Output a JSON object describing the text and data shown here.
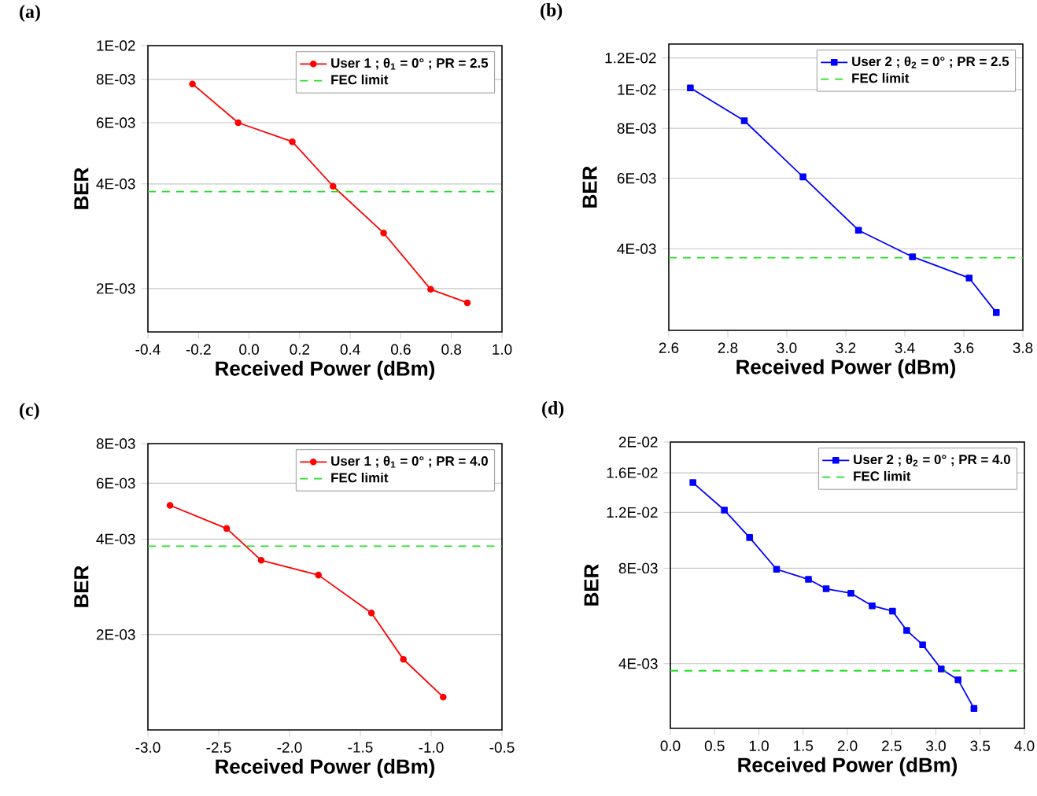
{
  "chart_data": [
    {
      "type": "line",
      "title": "(a)",
      "xlabel": "Received Power (dBm)",
      "ylabel": "BER",
      "log": "y",
      "grid": "y",
      "legend": "top right",
      "marker": "circle",
      "x": [
        -0.224,
        -0.043,
        0.171,
        0.332,
        0.532,
        0.718,
        0.863
      ],
      "series": [
        {
          "name": "User 1 ; θ$_{1}$ = 0° ; PR = 2.5",
          "color": "#ff0000",
          "values": [
            0.00776,
            0.006,
            0.00529,
            0.00394,
            0.00289,
            0.00199,
            0.00182
          ]
        }
      ],
      "ref_lines": [
        {
          "axis": "y",
          "value": 0.0038,
          "label": "FEC limit",
          "color": "#22dd22",
          "line_style": "dashed"
        }
      ],
      "xlim": [
        -0.4,
        1.0
      ],
      "ylim": [
        0.0015,
        0.01
      ],
      "xticks": [
        {
          "value": -0.4,
          "label": "-0.4"
        },
        {
          "value": -0.2,
          "label": "-0.2"
        },
        {
          "value": 0,
          "label": "0.0"
        },
        {
          "value": 0.2,
          "label": "0.2"
        },
        {
          "value": 0.4,
          "label": "0.4"
        },
        {
          "value": 0.6,
          "label": "0.6"
        },
        {
          "value": 0.8,
          "label": "0.8"
        },
        {
          "value": 1.0,
          "label": "1.0"
        }
      ],
      "yticks": [
        {
          "value": 0.002,
          "label": "2E-03"
        },
        {
          "value": 0.004,
          "label": "4E-03"
        },
        {
          "value": 0.006,
          "label": "6E-03"
        },
        {
          "value": 0.008,
          "label": "8E-03"
        },
        {
          "value": 0.01,
          "label": "1E-02"
        }
      ]
    },
    {
      "type": "line",
      "title": "(b)",
      "xlabel": "Received Power (dBm)",
      "ylabel": "BER",
      "log": "y",
      "grid": "y",
      "legend": "top right",
      "marker": "square",
      "x": [
        2.673,
        2.856,
        3.055,
        3.243,
        3.426,
        3.618,
        3.71
      ],
      "series": [
        {
          "name": "User 2 ; θ$_{2}$ = 0° ; PR = 2.5",
          "color": "#0000ff",
          "values": [
            0.0101,
            0.00836,
            0.00605,
            0.00445,
            0.00382,
            0.00338,
            0.00277
          ]
        }
      ],
      "ref_lines": [
        {
          "axis": "y",
          "value": 0.0038,
          "label": "FEC limit",
          "color": "#22dd22",
          "line_style": "dashed"
        }
      ],
      "xlim": [
        2.6,
        3.8
      ],
      "ylim": [
        0.0025,
        0.013
      ],
      "xticks": [
        {
          "value": 2.6,
          "label": "2.6"
        },
        {
          "value": 2.8,
          "label": "2.8"
        },
        {
          "value": 3.0,
          "label": "3.0"
        },
        {
          "value": 3.2,
          "label": "3.2"
        },
        {
          "value": 3.4,
          "label": "3.4"
        },
        {
          "value": 3.6,
          "label": "3.6"
        },
        {
          "value": 3.8,
          "label": "3.8"
        }
      ],
      "yticks": [
        {
          "value": 0.004,
          "label": "4E-03"
        },
        {
          "value": 0.006,
          "label": "6E-03"
        },
        {
          "value": 0.008,
          "label": "8E-03"
        },
        {
          "value": 0.01,
          "label": "1E-02"
        },
        {
          "value": 0.012,
          "label": "1.2E-02"
        }
      ]
    },
    {
      "type": "line",
      "title": "(c)",
      "xlabel": "Received Power (dBm)",
      "ylabel": "BER",
      "log": "y",
      "grid": "y",
      "legend": "top right",
      "marker": "circle",
      "x": [
        -2.844,
        -2.444,
        -2.2,
        -1.796,
        -1.422,
        -1.196,
        -0.915
      ],
      "series": [
        {
          "name": "User 1 ; θ$_{1}$ = 0° ; PR = 4.0",
          "color": "#ff0000",
          "values": [
            0.00511,
            0.00432,
            0.00343,
            0.00308,
            0.00234,
            0.00167,
            0.00127
          ]
        }
      ],
      "ref_lines": [
        {
          "axis": "y",
          "value": 0.0038,
          "label": "FEC limit",
          "color": "#22dd22",
          "line_style": "dashed"
        }
      ],
      "xlim": [
        -3.0,
        -0.5
      ],
      "ylim": [
        0.001,
        0.008
      ],
      "xticks": [
        {
          "value": -3.0,
          "label": "-3.0"
        },
        {
          "value": -2.5,
          "label": "-2.5"
        },
        {
          "value": -2.0,
          "label": "-2.0"
        },
        {
          "value": -1.5,
          "label": "-1.5"
        },
        {
          "value": -1.0,
          "label": "-1.0"
        },
        {
          "value": -0.5,
          "label": "-0.5"
        }
      ],
      "yticks": [
        {
          "value": 0.002,
          "label": "2E-03"
        },
        {
          "value": 0.004,
          "label": "4E-03"
        },
        {
          "value": 0.006,
          "label": "6E-03"
        },
        {
          "value": 0.008,
          "label": "8E-03"
        }
      ]
    },
    {
      "type": "line",
      "title": "(d)",
      "xlabel": "Received Power (dBm)",
      "ylabel": "BER",
      "log": "y",
      "grid": "y",
      "legend": "top right",
      "marker": "square",
      "x": [
        0.255,
        0.61,
        0.895,
        1.2,
        1.56,
        1.76,
        2.04,
        2.28,
        2.51,
        2.67,
        2.85,
        3.06,
        3.25,
        3.43
      ],
      "series": [
        {
          "name": "User 2 ; θ$_{2}$ = 0° ; PR = 4.0",
          "color": "#0000ff",
          "values": [
            0.0149,
            0.0122,
            0.01,
            0.00794,
            0.00738,
            0.00689,
            0.00667,
            0.00609,
            0.00586,
            0.00509,
            0.00459,
            0.00385,
            0.00356,
            0.00289
          ]
        }
      ],
      "ref_lines": [
        {
          "axis": "y",
          "value": 0.0038,
          "label": "FEC limit",
          "color": "#22dd22",
          "line_style": "dashed"
        }
      ],
      "xlim": [
        0.0,
        4.0
      ],
      "ylim": [
        0.0025,
        0.02
      ],
      "xticks": [
        {
          "value": 0,
          "label": "0.0"
        },
        {
          "value": 0.5,
          "label": "0.5"
        },
        {
          "value": 1.0,
          "label": "1.0"
        },
        {
          "value": 1.5,
          "label": "1.5"
        },
        {
          "value": 2.0,
          "label": "2.0"
        },
        {
          "value": 2.5,
          "label": "2.5"
        },
        {
          "value": 3.0,
          "label": "3.0"
        },
        {
          "value": 3.5,
          "label": "3.5"
        },
        {
          "value": 4.0,
          "label": "4.0"
        }
      ],
      "yticks": [
        {
          "value": 0.004,
          "label": "4E-03"
        },
        {
          "value": 0.008,
          "label": "8E-03"
        },
        {
          "value": 0.012,
          "label": "1.2E-02"
        },
        {
          "value": 0.016,
          "label": "1.6E-02"
        },
        {
          "value": 0.02,
          "label": "2E-02"
        }
      ]
    }
  ]
}
